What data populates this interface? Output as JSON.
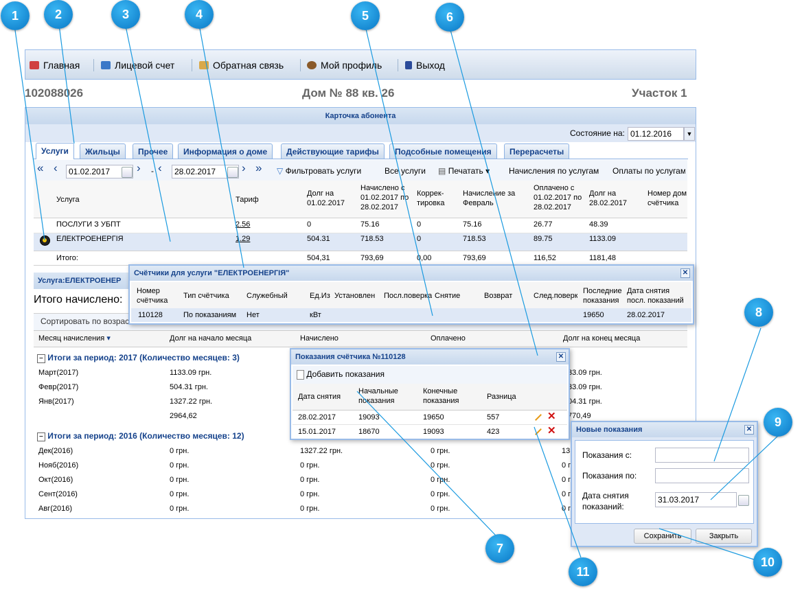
{
  "nav": {
    "items": [
      {
        "label": "Главная",
        "icon": "home-icon"
      },
      {
        "label": "Лицевой счет",
        "icon": "account-icon"
      },
      {
        "label": "Обратная связь",
        "icon": "feedback-icon"
      },
      {
        "label": "Мой профиль",
        "icon": "profile-icon"
      },
      {
        "label": "Выход",
        "icon": "exit-icon"
      }
    ]
  },
  "header": {
    "account": "102088026",
    "address": "Дом № 88 кв. 26",
    "district": "Участок 1"
  },
  "panel": {
    "title": "Карточка абонента",
    "state_label": "Состояние на:",
    "state_date": "01.12.2016"
  },
  "tabs": [
    "Услуги",
    "Жильцы",
    "Прочее",
    "Информация о доме",
    "Действующие тарифы",
    "Подсобные помещения",
    "Перерасчеты"
  ],
  "toolbar": {
    "date_from": "01.02.2017",
    "dash": "-",
    "date_to": "28.02.2017",
    "filter": "Фильтровать услуги",
    "all": "Все услуги",
    "print": "Печатать",
    "charges": "Начисления по услугам",
    "payments": "Оплаты по услугам"
  },
  "services": {
    "headers": {
      "service": "Услуга",
      "tariff": "Тариф",
      "debt_start": "Долг на\n01.02.2017",
      "charged": "Начислено с\n01.02.2017 по\n28.02.2017",
      "correction": "Коррек-\nтировка",
      "charge_month": "Начисление за\nФевраль",
      "paid": "Оплачено с\n01.02.2017 по\n28.02.2017",
      "debt_end": "Долг на\n28.02.2017",
      "meter_no": "Номер дом\nсчётчика"
    },
    "rows": [
      {
        "service": "ПОСЛУГИ З УБПТ",
        "tariff": "2.56",
        "debt_start": "0",
        "charged": "75.16",
        "correction": "0",
        "charge_month": "75.16",
        "paid": "26.77",
        "debt_end": "48.39"
      },
      {
        "service": "ЕЛЕКТРОЕНЕРГІЯ",
        "tariff": "1.29",
        "debt_start": "504.31",
        "charged": "718.53",
        "correction": "0",
        "charge_month": "718.53",
        "paid": "89.75",
        "debt_end": "1133.09"
      }
    ],
    "total": {
      "label": "Итого:",
      "debt_start": "504,31",
      "charged": "793,69",
      "correction": "0,00",
      "charge_month": "793,69",
      "paid": "116,52",
      "debt_end": "1181,48"
    }
  },
  "lower": {
    "title": "Услуга:ЕЛЕКТРОЕНЕР",
    "total_label": "Итого начислено:",
    "sort": "Сортировать по возраст",
    "headers": {
      "month": "Месяц начисления",
      "debt_start": "Долг на начало месяца",
      "charged": "Начислено",
      "paid": "Оплачено",
      "debt_end": "Долг на конец месяца"
    },
    "group1": "Итоги за период: 2017 (Количество месяцев: 3)",
    "rows1": [
      {
        "month": "Март(2017)",
        "debt": "1133.09 грн.",
        "end": "33.09 грн."
      },
      {
        "month": "Февр(2017)",
        "debt": "504.31 грн.",
        "end": "33.09 грн."
      },
      {
        "month": "Янв(2017)",
        "debt": "1327.22 грн.",
        "end": "04.31 грн."
      }
    ],
    "sum1": {
      "debt": "2964,62",
      "end": "770,49"
    },
    "group2": "Итоги за период: 2016 (Количество месяцев: 12)",
    "rows2": [
      {
        "month": "Дек(2016)",
        "debt": "0 грн.",
        "charged": "1327.22 грн.",
        "paid": "0 грн.",
        "end": "13"
      },
      {
        "month": "Нояб(2016)",
        "debt": "0 грн.",
        "charged": "0 грн.",
        "paid": "0 грн.",
        "end": "0 г"
      },
      {
        "month": "Окт(2016)",
        "debt": "0 грн.",
        "charged": "0 грн.",
        "paid": "0 грн.",
        "end": "0 г"
      },
      {
        "month": "Сент(2016)",
        "debt": "0 грн.",
        "charged": "0 грн.",
        "paid": "0 грн.",
        "end": "0 г"
      },
      {
        "month": "Авг(2016)",
        "debt": "0 грн.",
        "charged": "0 грн.",
        "paid": "0 грн.",
        "end": "0 г"
      }
    ]
  },
  "meters_win": {
    "title": "Счётчики для услуги \"ЕЛЕКТРОЕНЕРГІЯ\"",
    "headers": [
      "Номер\nсчётчика",
      "Тип счётчика",
      "Служебный",
      "Ед.Из",
      "Установлен",
      "Посл.поверка",
      "Снятие",
      "Возврат",
      "След.поверка",
      "Последние\nпоказания",
      "Дата снятия\nпосл. показаний"
    ],
    "row": [
      "110128",
      "По показаниям",
      "Нет",
      "кВт",
      "",
      "",
      "",
      "",
      "",
      "19650",
      "28.02.2017"
    ]
  },
  "readings_win": {
    "title": "Показания счётчика №110128",
    "add": "Добавить показания",
    "headers": [
      "Дата снятия",
      "Начальные\nпоказания",
      "Конечные\nпоказания",
      "Разница"
    ],
    "rows": [
      [
        "28.02.2017",
        "19093",
        "19650",
        "557"
      ],
      [
        "15.01.2017",
        "18670",
        "19093",
        "423"
      ]
    ]
  },
  "new_win": {
    "title": "Новые показания",
    "from_label": "Показания с:",
    "to_label": "Показания по:",
    "date_label": "Дата снятия\nпоказаний:",
    "date_value": "31.03.2017",
    "save": "Сохранить",
    "close": "Закрыть"
  },
  "callouts": [
    "1",
    "2",
    "3",
    "4",
    "5",
    "6",
    "7",
    "8",
    "9",
    "10",
    "11"
  ]
}
